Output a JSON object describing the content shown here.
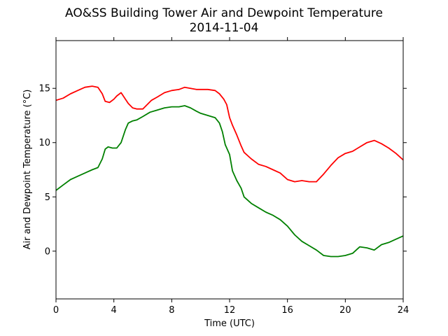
{
  "chart_data": {
    "type": "line",
    "title": "AO&SS Building Tower Air and Dewpoint Temperature",
    "subtitle": "2014-11-04",
    "xlabel": "Time (UTC)",
    "ylabel": "Air and Dewpoint Temperature (°C)",
    "xlim": [
      0,
      24
    ],
    "ylim": [
      -4.4,
      19.4
    ],
    "xticks": [
      0,
      4,
      8,
      12,
      16,
      20,
      24
    ],
    "yticks": [
      0,
      5,
      10,
      15
    ],
    "grid": false,
    "legend": "none",
    "series": [
      {
        "color": "#ff0000",
        "x": [
          0,
          0.5,
          1,
          1.5,
          2,
          2.5,
          2.9,
          3.2,
          3.4,
          3.7,
          4.0,
          4.2,
          4.5,
          4.8,
          5.0,
          5.3,
          5.6,
          6.0,
          6.3,
          6.6,
          7.0,
          7.5,
          8.0,
          8.5,
          8.9,
          9.3,
          9.7,
          10.0,
          10.5,
          11.0,
          11.3,
          11.6,
          11.8,
          12.0,
          12.2,
          12.5,
          12.8,
          13.0,
          13.5,
          14.0,
          14.5,
          15.0,
          15.5,
          16.0,
          16.5,
          17.0,
          17.5,
          18.0,
          18.5,
          19.0,
          19.5,
          20.0,
          20.5,
          21.0,
          21.5,
          22.0,
          22.5,
          23.0,
          23.5,
          24.0
        ],
        "y": [
          13.9,
          14.1,
          14.5,
          14.8,
          15.1,
          15.2,
          15.1,
          14.5,
          13.8,
          13.7,
          14.0,
          14.3,
          14.6,
          14.0,
          13.6,
          13.2,
          13.1,
          13.1,
          13.5,
          13.9,
          14.2,
          14.6,
          14.8,
          14.9,
          15.1,
          15.0,
          14.9,
          14.9,
          14.9,
          14.8,
          14.5,
          14.0,
          13.5,
          12.3,
          11.6,
          10.7,
          9.7,
          9.1,
          8.5,
          8.0,
          7.8,
          7.5,
          7.2,
          6.6,
          6.4,
          6.5,
          6.4,
          6.4,
          7.1,
          7.9,
          8.6,
          9.0,
          9.2,
          9.6,
          10.0,
          10.2,
          9.9,
          9.5,
          9.0,
          8.4
        ]
      },
      {
        "color": "#008000",
        "x": [
          0,
          0.5,
          1,
          1.5,
          2,
          2.5,
          2.9,
          3.2,
          3.4,
          3.6,
          3.9,
          4.2,
          4.5,
          4.8,
          5.0,
          5.3,
          5.6,
          6.0,
          6.5,
          7.0,
          7.5,
          8.0,
          8.5,
          8.9,
          9.3,
          9.7,
          10.0,
          10.5,
          11.0,
          11.3,
          11.5,
          11.7,
          12.0,
          12.2,
          12.5,
          12.8,
          13.0,
          13.5,
          14.0,
          14.5,
          15.0,
          15.5,
          16.0,
          16.5,
          17.0,
          17.5,
          18.0,
          18.5,
          19.0,
          19.5,
          20.0,
          20.5,
          21.0,
          21.5,
          22.0,
          22.5,
          23.0,
          23.5,
          24.0
        ],
        "y": [
          5.6,
          6.1,
          6.6,
          6.9,
          7.2,
          7.5,
          7.7,
          8.5,
          9.4,
          9.6,
          9.5,
          9.5,
          10.0,
          11.2,
          11.8,
          12.0,
          12.1,
          12.4,
          12.8,
          13.0,
          13.2,
          13.3,
          13.3,
          13.4,
          13.2,
          12.9,
          12.7,
          12.5,
          12.3,
          11.8,
          11.0,
          9.8,
          8.9,
          7.4,
          6.5,
          5.8,
          5.0,
          4.4,
          4.0,
          3.6,
          3.3,
          2.9,
          2.3,
          1.5,
          0.9,
          0.5,
          0.1,
          -0.4,
          -0.5,
          -0.5,
          -0.4,
          -0.2,
          0.4,
          0.3,
          0.1,
          0.6,
          0.8,
          1.1,
          1.4
        ]
      }
    ]
  }
}
